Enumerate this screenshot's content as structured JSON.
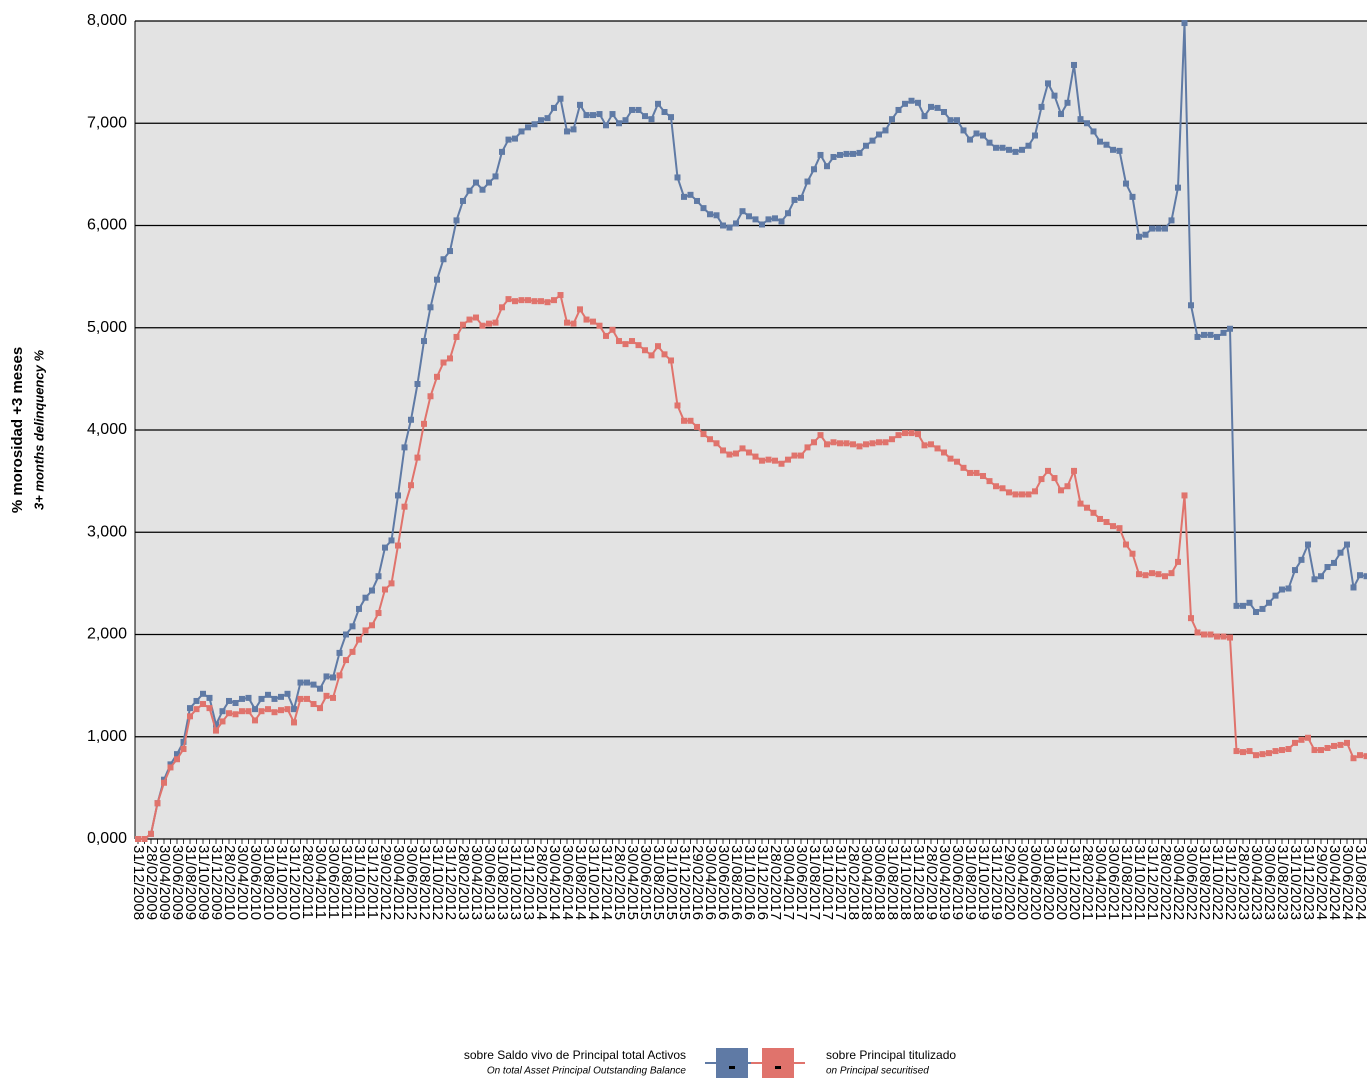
{
  "chart_data": {
    "type": "line",
    "y_title": "% morosidad +3 meses",
    "y_subtitle": "3+ months delinquency %",
    "ylim": [
      0,
      8
    ],
    "yticks": [
      {
        "value": 0,
        "label": "0,000"
      },
      {
        "value": 1,
        "label": "1,000"
      },
      {
        "value": 2,
        "label": "2,000"
      },
      {
        "value": 3,
        "label": "3,000"
      },
      {
        "value": 4,
        "label": "4,000"
      },
      {
        "value": 5,
        "label": "5,000"
      },
      {
        "value": 6,
        "label": "6,000"
      },
      {
        "value": 7,
        "label": "7,000"
      },
      {
        "value": 8,
        "label": "8,000"
      }
    ],
    "grid": true,
    "legend": "bottom",
    "categories": [
      "31/12/2008",
      null,
      "28/02/2009",
      null,
      "30/04/2009",
      null,
      "30/06/2009",
      null,
      "31/08/2009",
      null,
      "31/10/2009",
      null,
      "31/12/2009",
      null,
      "28/02/2010",
      null,
      "30/04/2010",
      null,
      "30/06/2010",
      null,
      "31/08/2010",
      null,
      "31/10/2010",
      null,
      "31/12/2010",
      null,
      "28/02/2011",
      null,
      "30/04/2011",
      null,
      "30/06/2011",
      null,
      "31/08/2011",
      null,
      "31/10/2011",
      null,
      "31/12/2011",
      null,
      "29/02/2012",
      null,
      "30/04/2012",
      null,
      "30/06/2012",
      null,
      "31/08/2012",
      null,
      "31/10/2012",
      null,
      "31/12/2012",
      null,
      "28/02/2013",
      null,
      "30/04/2013",
      null,
      "30/06/2013",
      null,
      "31/08/2013",
      null,
      "31/10/2013",
      null,
      "31/12/2013",
      null,
      "28/02/2014",
      null,
      "30/04/2014",
      null,
      "30/06/2014",
      null,
      "31/08/2014",
      null,
      "31/10/2014",
      null,
      "31/12/2014",
      null,
      "28/02/2015",
      null,
      "30/04/2015",
      null,
      "30/06/2015",
      null,
      "31/08/2015",
      null,
      "31/10/2015",
      null,
      "31/12/2015",
      null,
      "29/02/2016",
      null,
      "30/04/2016",
      null,
      "30/06/2016",
      null,
      "31/08/2016",
      null,
      "31/10/2016",
      null,
      "31/12/2016",
      null,
      "28/02/2017",
      null,
      "30/04/2017",
      null,
      "30/06/2017",
      null,
      "31/08/2017",
      null,
      "31/10/2017",
      null,
      "31/12/2017",
      null,
      "28/02/2018",
      null,
      "30/04/2018",
      null,
      "30/06/2018",
      null,
      "31/08/2018",
      null,
      "31/10/2018",
      null,
      "31/12/2018",
      null,
      "28/02/2019",
      null,
      "30/04/2019",
      null,
      "30/06/2019",
      null,
      "31/08/2019",
      null,
      "31/10/2019",
      null,
      "31/12/2019",
      null,
      "29/02/2020",
      null,
      "30/04/2020",
      null,
      "30/06/2020",
      null,
      "31/08/2020",
      null,
      "31/10/2020",
      null,
      "31/12/2020",
      null,
      "28/02/2021",
      null,
      "30/04/2021",
      null,
      "30/06/2021",
      null,
      "31/08/2021",
      null,
      "31/10/2021",
      null,
      "31/12/2021",
      null,
      "28/02/2022",
      null,
      "30/04/2022",
      null,
      "30/06/2022",
      null,
      "31/08/2022",
      null,
      "31/10/2022",
      null,
      "31/12/2022",
      null,
      "28/02/2023",
      null,
      "30/04/2023",
      null,
      "30/06/2023",
      null,
      "31/08/2023",
      null,
      "31/10/2023",
      null,
      "31/12/2023",
      null,
      "29/02/2024",
      null,
      "30/04/2024",
      null,
      "30/06/2024",
      null,
      "31/08/2024",
      null
    ],
    "series": [
      {
        "name": "sobre Saldo vivo de Principal total Activos",
        "name_en": "On total Asset Principal Outstanding Balance",
        "color": "#5f7aa5",
        "values": [
          0,
          0,
          0.05,
          0.35,
          0.58,
          0.73,
          0.83,
          0.95,
          1.28,
          1.35,
          1.42,
          1.38,
          1.12,
          1.25,
          1.35,
          1.33,
          1.37,
          1.38,
          1.27,
          1.37,
          1.41,
          1.37,
          1.39,
          1.42,
          1.27,
          1.53,
          1.53,
          1.51,
          1.47,
          1.59,
          1.58,
          1.82,
          2.0,
          2.08,
          2.25,
          2.36,
          2.43,
          2.57,
          2.85,
          2.92,
          3.36,
          3.83,
          4.1,
          4.45,
          4.87,
          5.2,
          5.47,
          5.67,
          5.75,
          6.05,
          6.24,
          6.34,
          6.42,
          6.35,
          6.42,
          6.48,
          6.72,
          6.84,
          6.85,
          6.92,
          6.96,
          6.99,
          7.03,
          7.05,
          7.15,
          7.24,
          6.92,
          6.94,
          7.18,
          7.08,
          7.08,
          7.09,
          6.98,
          7.09,
          7.0,
          7.03,
          7.13,
          7.13,
          7.07,
          7.04,
          7.19,
          7.11,
          7.06,
          6.47,
          6.28,
          6.3,
          6.24,
          6.17,
          6.11,
          6.1,
          6.0,
          5.98,
          6.02,
          6.14,
          6.09,
          6.06,
          6.01,
          6.06,
          6.07,
          6.04,
          6.12,
          6.25,
          6.27,
          6.43,
          6.55,
          6.69,
          6.58,
          6.67,
          6.69,
          6.7,
          6.7,
          6.71,
          6.78,
          6.83,
          6.89,
          6.93,
          7.04,
          7.13,
          7.19,
          7.22,
          7.2,
          7.07,
          7.16,
          7.15,
          7.11,
          7.03,
          7.03,
          6.93,
          6.84,
          6.9,
          6.88,
          6.81,
          6.76,
          6.76,
          6.74,
          6.72,
          6.74,
          6.78,
          6.88,
          7.16,
          7.39,
          7.27,
          7.09,
          7.2,
          7.57,
          7.04,
          7.0,
          6.92,
          6.82,
          6.79,
          6.74,
          6.73,
          6.41,
          6.28,
          5.89,
          5.91,
          5.97,
          5.97,
          5.97,
          6.05,
          6.37,
          7.98,
          5.22,
          4.91,
          4.93,
          4.93,
          4.91,
          4.95,
          4.99,
          2.28,
          2.28,
          2.31,
          2.22,
          2.25,
          2.31,
          2.38,
          2.44,
          2.45,
          2.63,
          2.73,
          2.88,
          2.54,
          2.57,
          2.66,
          2.7,
          2.8,
          2.88,
          2.46,
          2.58,
          2.57
        ]
      },
      {
        "name": "sobre Principal titulizado",
        "name_en": "on Principal securitised",
        "color": "#e0736c",
        "values": [
          0,
          0,
          0.05,
          0.35,
          0.55,
          0.7,
          0.78,
          0.88,
          1.2,
          1.27,
          1.32,
          1.28,
          1.06,
          1.15,
          1.23,
          1.22,
          1.25,
          1.25,
          1.16,
          1.25,
          1.27,
          1.24,
          1.26,
          1.27,
          1.14,
          1.37,
          1.37,
          1.32,
          1.28,
          1.4,
          1.38,
          1.6,
          1.75,
          1.83,
          1.95,
          2.04,
          2.09,
          2.21,
          2.44,
          2.5,
          2.87,
          3.25,
          3.46,
          3.73,
          4.06,
          4.33,
          4.52,
          4.66,
          4.7,
          4.91,
          5.03,
          5.08,
          5.1,
          5.02,
          5.04,
          5.05,
          5.2,
          5.28,
          5.26,
          5.27,
          5.27,
          5.26,
          5.26,
          5.25,
          5.27,
          5.32,
          5.05,
          5.04,
          5.18,
          5.08,
          5.06,
          5.02,
          4.92,
          4.98,
          4.87,
          4.84,
          4.87,
          4.83,
          4.78,
          4.73,
          4.82,
          4.74,
          4.68,
          4.24,
          4.09,
          4.09,
          4.03,
          3.96,
          3.91,
          3.87,
          3.8,
          3.76,
          3.77,
          3.82,
          3.78,
          3.74,
          3.7,
          3.71,
          3.7,
          3.67,
          3.71,
          3.75,
          3.75,
          3.83,
          3.88,
          3.95,
          3.86,
          3.88,
          3.87,
          3.87,
          3.86,
          3.84,
          3.86,
          3.87,
          3.88,
          3.88,
          3.91,
          3.95,
          3.97,
          3.97,
          3.96,
          3.85,
          3.86,
          3.82,
          3.78,
          3.72,
          3.69,
          3.63,
          3.58,
          3.58,
          3.55,
          3.5,
          3.45,
          3.43,
          3.39,
          3.37,
          3.37,
          3.37,
          3.4,
          3.52,
          3.6,
          3.53,
          3.41,
          3.45,
          3.6,
          3.28,
          3.24,
          3.19,
          3.13,
          3.1,
          3.06,
          3.04,
          2.88,
          2.79,
          2.59,
          2.58,
          2.6,
          2.59,
          2.57,
          2.6,
          2.71,
          3.36,
          2.16,
          2.02,
          2.0,
          2.0,
          1.98,
          1.98,
          1.97,
          0.86,
          0.85,
          0.86,
          0.82,
          0.83,
          0.84,
          0.86,
          0.87,
          0.88,
          0.94,
          0.97,
          0.99,
          0.87,
          0.87,
          0.89,
          0.91,
          0.92,
          0.94,
          0.79,
          0.82,
          0.81
        ]
      }
    ]
  }
}
